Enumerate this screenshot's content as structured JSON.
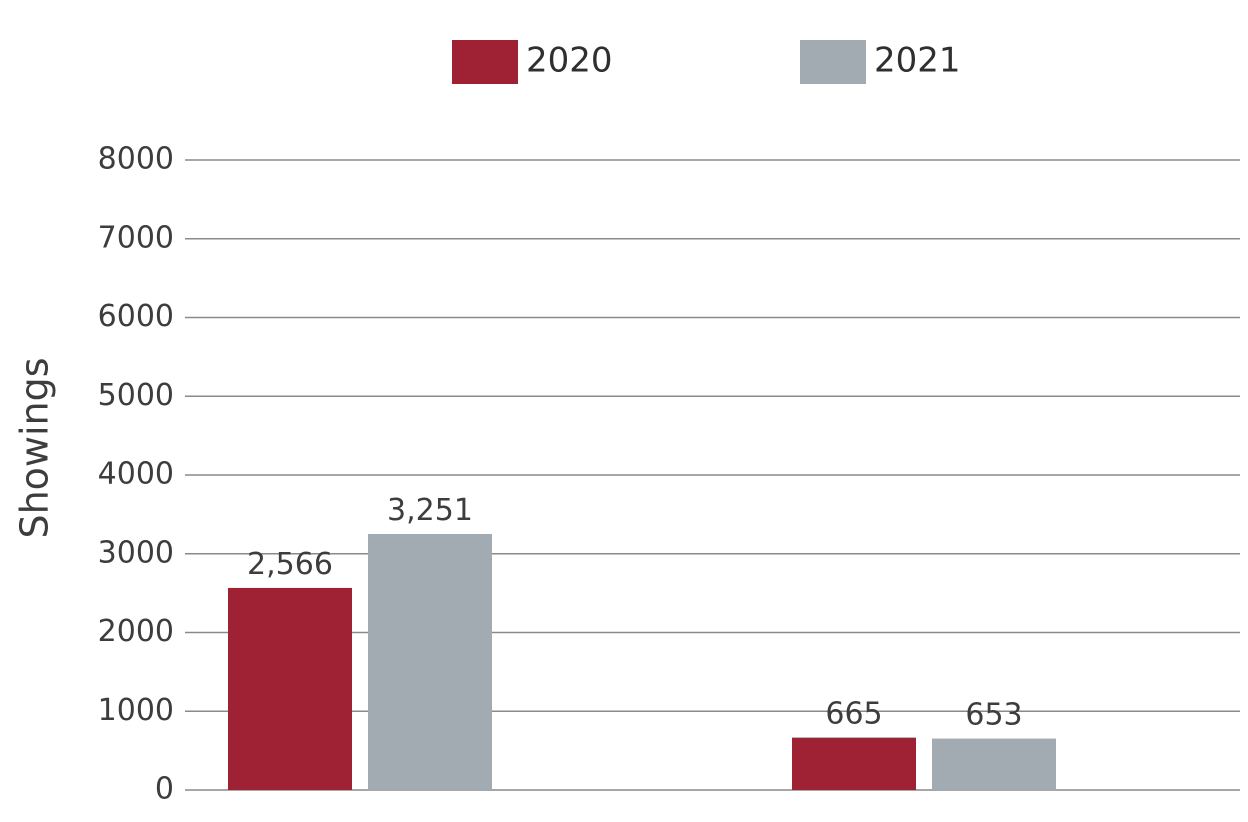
{
  "chart_data": {
    "type": "bar",
    "categories": [
      "",
      ""
    ],
    "series": [
      {
        "name": "2020",
        "color": "#9e2233",
        "values": [
          2566,
          665
        ],
        "labels": [
          "2,566",
          "665"
        ]
      },
      {
        "name": "2021",
        "color": "#a2abb1",
        "values": [
          3251,
          653
        ],
        "labels": [
          "3,251",
          "653"
        ]
      }
    ],
    "ylabel": "Showings",
    "ylim": [
      0,
      8000
    ],
    "yticks": [
      0,
      1000,
      2000,
      3000,
      4000,
      5000,
      6000,
      7000,
      8000
    ],
    "grid": true,
    "legend": "top-center"
  }
}
